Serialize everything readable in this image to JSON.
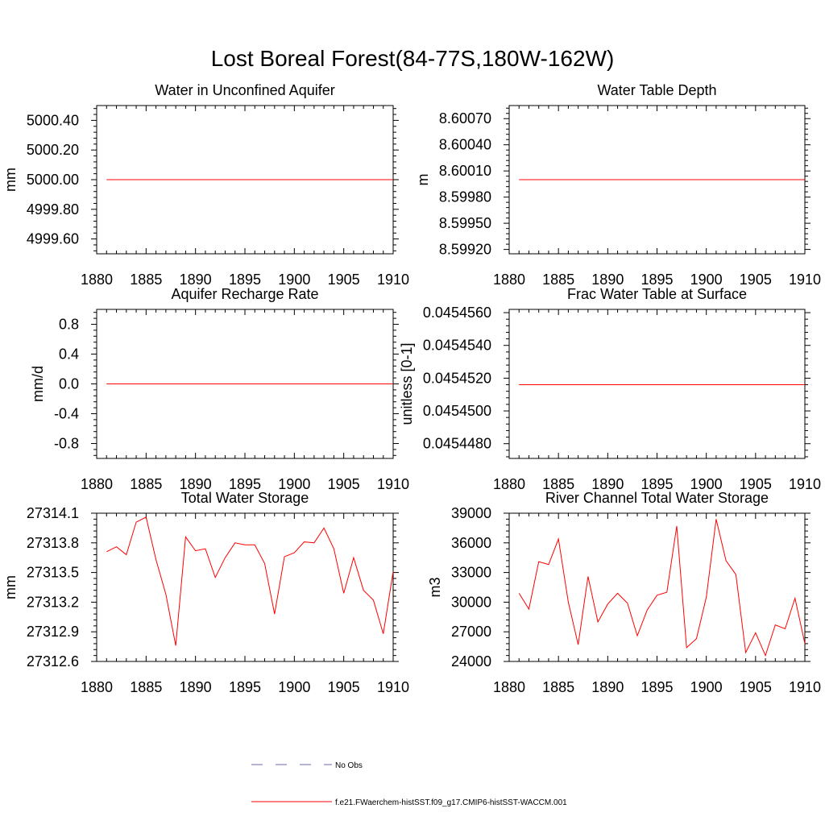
{
  "title": "Lost Boreal Forest(84-77S,180W-162W)",
  "line_color": "#ff0000",
  "obs_color": "#6a6aaa",
  "legend": {
    "obs_label": "No Obs",
    "model_label": "f.e21.FWaerchem-histSST.f09_g17.CMIP6-histSST-WACCM.001"
  },
  "chart_data": [
    {
      "type": "line",
      "title": "Water in Unconfined Aquifer",
      "ylabel": "mm",
      "xlim": [
        1880,
        1910
      ],
      "ylim": [
        4999.5,
        5000.5
      ],
      "xticks": [
        1880,
        1885,
        1890,
        1895,
        1900,
        1905,
        1910
      ],
      "xtick_labels": [
        "1880",
        "1885",
        "1890",
        "1895",
        "1900",
        "1905",
        "1910"
      ],
      "yticks": [
        4999.6,
        4999.8,
        5000.0,
        5000.2,
        5000.4
      ],
      "ytick_labels": [
        "4999.60",
        "4999.80",
        "5000.00",
        "5000.20",
        "5000.40"
      ],
      "x": [
        1881,
        1910
      ],
      "y": [
        5000.0,
        5000.0
      ]
    },
    {
      "type": "line",
      "title": "Water Table Depth",
      "ylabel": "m",
      "xlim": [
        1880,
        1910
      ],
      "ylim": [
        8.59915,
        8.60085
      ],
      "xticks": [
        1880,
        1885,
        1890,
        1895,
        1900,
        1905,
        1910
      ],
      "xtick_labels": [
        "1880",
        "1885",
        "1890",
        "1895",
        "1900",
        "1905",
        "1910"
      ],
      "yticks": [
        8.5992,
        8.5995,
        8.5998,
        8.6001,
        8.6004,
        8.6007
      ],
      "ytick_labels": [
        "8.59920",
        "8.59950",
        "8.59980",
        "8.60010",
        "8.60040",
        "8.60070"
      ],
      "x": [
        1881,
        1910
      ],
      "y": [
        8.6,
        8.6
      ]
    },
    {
      "type": "line",
      "title": "Aquifer Recharge Rate",
      "ylabel": "mm/d",
      "xlim": [
        1880,
        1910
      ],
      "ylim": [
        -1.0,
        1.0
      ],
      "xticks": [
        1880,
        1885,
        1890,
        1895,
        1900,
        1905,
        1910
      ],
      "xtick_labels": [
        "1880",
        "1885",
        "1890",
        "1895",
        "1900",
        "1905",
        "1910"
      ],
      "yticks": [
        -0.8,
        -0.4,
        0.0,
        0.4,
        0.8
      ],
      "ytick_labels": [
        "-0.8",
        "-0.4",
        "0.0",
        "0.4",
        "0.8"
      ],
      "x": [
        1881,
        1910
      ],
      "y": [
        0.0,
        0.0
      ]
    },
    {
      "type": "line",
      "title": "Frac Water Table at Surface",
      "ylabel": "unitless [0-1]",
      "xlim": [
        1880,
        1910
      ],
      "ylim": [
        0.0454471,
        0.0454562
      ],
      "xticks": [
        1880,
        1885,
        1890,
        1895,
        1900,
        1905,
        1910
      ],
      "xtick_labels": [
        "1880",
        "1885",
        "1890",
        "1895",
        "1900",
        "1905",
        "1910"
      ],
      "yticks": [
        0.045448,
        0.04545,
        0.045452,
        0.045454,
        0.045456
      ],
      "ytick_labels": [
        "0.0454480",
        "0.0454500",
        "0.0454520",
        "0.0454540",
        "0.0454560"
      ],
      "x": [
        1881,
        1910
      ],
      "y": [
        0.0454516,
        0.0454516
      ]
    },
    {
      "type": "line",
      "title": "Total Water Storage",
      "ylabel": "mm",
      "xlim": [
        1880,
        1910
      ],
      "ylim": [
        27312.6,
        27314.1
      ],
      "xticks": [
        1880,
        1885,
        1890,
        1895,
        1900,
        1905,
        1910
      ],
      "xtick_labels": [
        "1880",
        "1885",
        "1890",
        "1895",
        "1900",
        "1905",
        "1910"
      ],
      "yticks": [
        27312.6,
        27312.9,
        27313.2,
        27313.5,
        27313.8,
        27314.1
      ],
      "ytick_labels": [
        "27312.6",
        "27312.9",
        "27313.2",
        "27313.5",
        "27313.8",
        "27314.1"
      ],
      "x": [
        1881,
        1882,
        1883,
        1884,
        1885,
        1886,
        1887,
        1888,
        1889,
        1890,
        1891,
        1892,
        1893,
        1894,
        1895,
        1896,
        1897,
        1898,
        1899,
        1900,
        1901,
        1902,
        1903,
        1904,
        1905,
        1906,
        1907,
        1908,
        1909,
        1910
      ],
      "y": [
        27313.71,
        27313.76,
        27313.68,
        27314.01,
        27314.06,
        27313.63,
        27313.28,
        27312.76,
        27313.86,
        27313.72,
        27313.74,
        27313.45,
        27313.65,
        27313.8,
        27313.78,
        27313.78,
        27313.59,
        27313.08,
        27313.66,
        27313.7,
        27313.81,
        27313.8,
        27313.95,
        27313.74,
        27313.29,
        27313.65,
        27313.32,
        27313.22,
        27312.88,
        27313.51
      ]
    },
    {
      "type": "line",
      "title": "River Channel Total Water Storage",
      "ylabel": "m3",
      "xlim": [
        1880,
        1910
      ],
      "ylim": [
        24000,
        39000
      ],
      "xticks": [
        1880,
        1885,
        1890,
        1895,
        1900,
        1905,
        1910
      ],
      "xtick_labels": [
        "1880",
        "1885",
        "1890",
        "1895",
        "1900",
        "1905",
        "1910"
      ],
      "yticks": [
        24000,
        27000,
        30000,
        33000,
        36000,
        39000
      ],
      "ytick_labels": [
        "24000",
        "27000",
        "30000",
        "33000",
        "36000",
        "39000"
      ],
      "x": [
        1881,
        1882,
        1883,
        1884,
        1885,
        1886,
        1887,
        1888,
        1889,
        1890,
        1891,
        1892,
        1893,
        1894,
        1895,
        1896,
        1897,
        1898,
        1899,
        1900,
        1901,
        1902,
        1903,
        1904,
        1905,
        1906,
        1907,
        1908,
        1909,
        1910
      ],
      "y": [
        30900,
        29300,
        34100,
        33800,
        36400,
        30000,
        25700,
        32600,
        28000,
        29800,
        30900,
        29900,
        26600,
        29200,
        30700,
        31000,
        37700,
        25400,
        26300,
        30500,
        38400,
        34200,
        32800,
        24900,
        26900,
        24600,
        27700,
        27300,
        30400,
        25800
      ]
    }
  ]
}
